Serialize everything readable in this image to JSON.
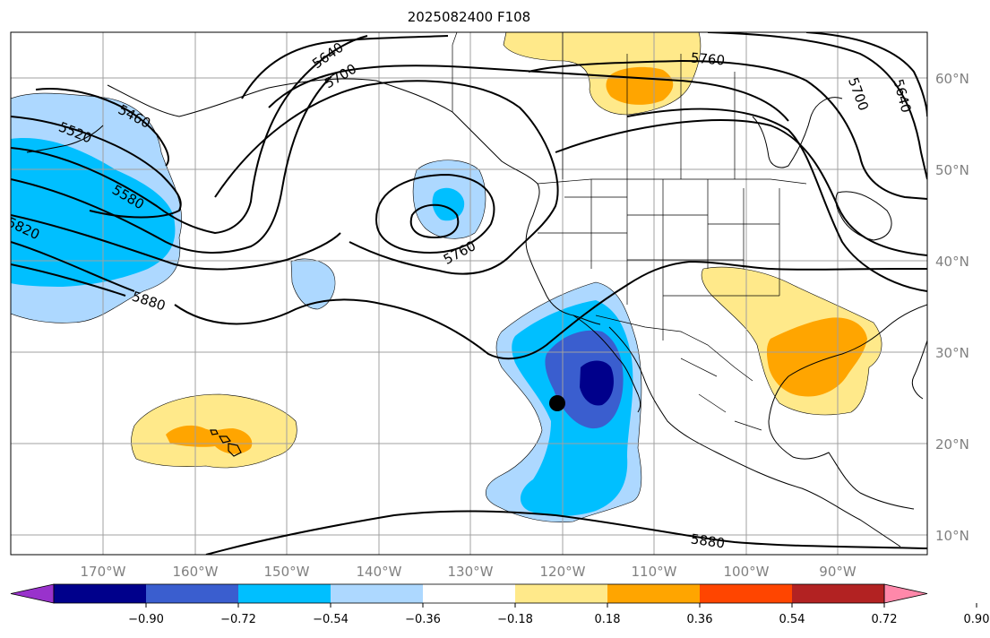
{
  "title": "2025082400 F108",
  "map": {
    "lat_labels": [
      "60°N",
      "50°N",
      "40°N",
      "30°N",
      "20°N",
      "10°N"
    ],
    "lon_labels": [
      "170°W",
      "160°W",
      "150°W",
      "140°W",
      "130°W",
      "120°W",
      "110°W",
      "100°W",
      "90°W"
    ],
    "contour_labels": {
      "c5460": "5460",
      "c5520": "5520",
      "c5580": "5580",
      "c5820": "5820",
      "c5880_west": "5880",
      "c5640_nw": "5640",
      "c5700_nw": "5700",
      "c5760_low": "5760",
      "c5760_north": "5760",
      "c5700_ne": "5700",
      "c5640_ne": "5640",
      "c5880_south": "5880"
    }
  },
  "colorbar": {
    "ticks": [
      "−0.90",
      "−0.72",
      "−0.54",
      "−0.36",
      "−0.18",
      "0.18",
      "0.36",
      "0.54",
      "0.72",
      "0.90"
    ],
    "colors": [
      "#9932cc",
      "#00008b",
      "#3a5ecf",
      "#00bfff",
      "#add8ff",
      "#ffffff",
      "#ffe98a",
      "#ffa500",
      "#ff4500",
      "#b22222",
      "#ff88aa"
    ]
  }
}
